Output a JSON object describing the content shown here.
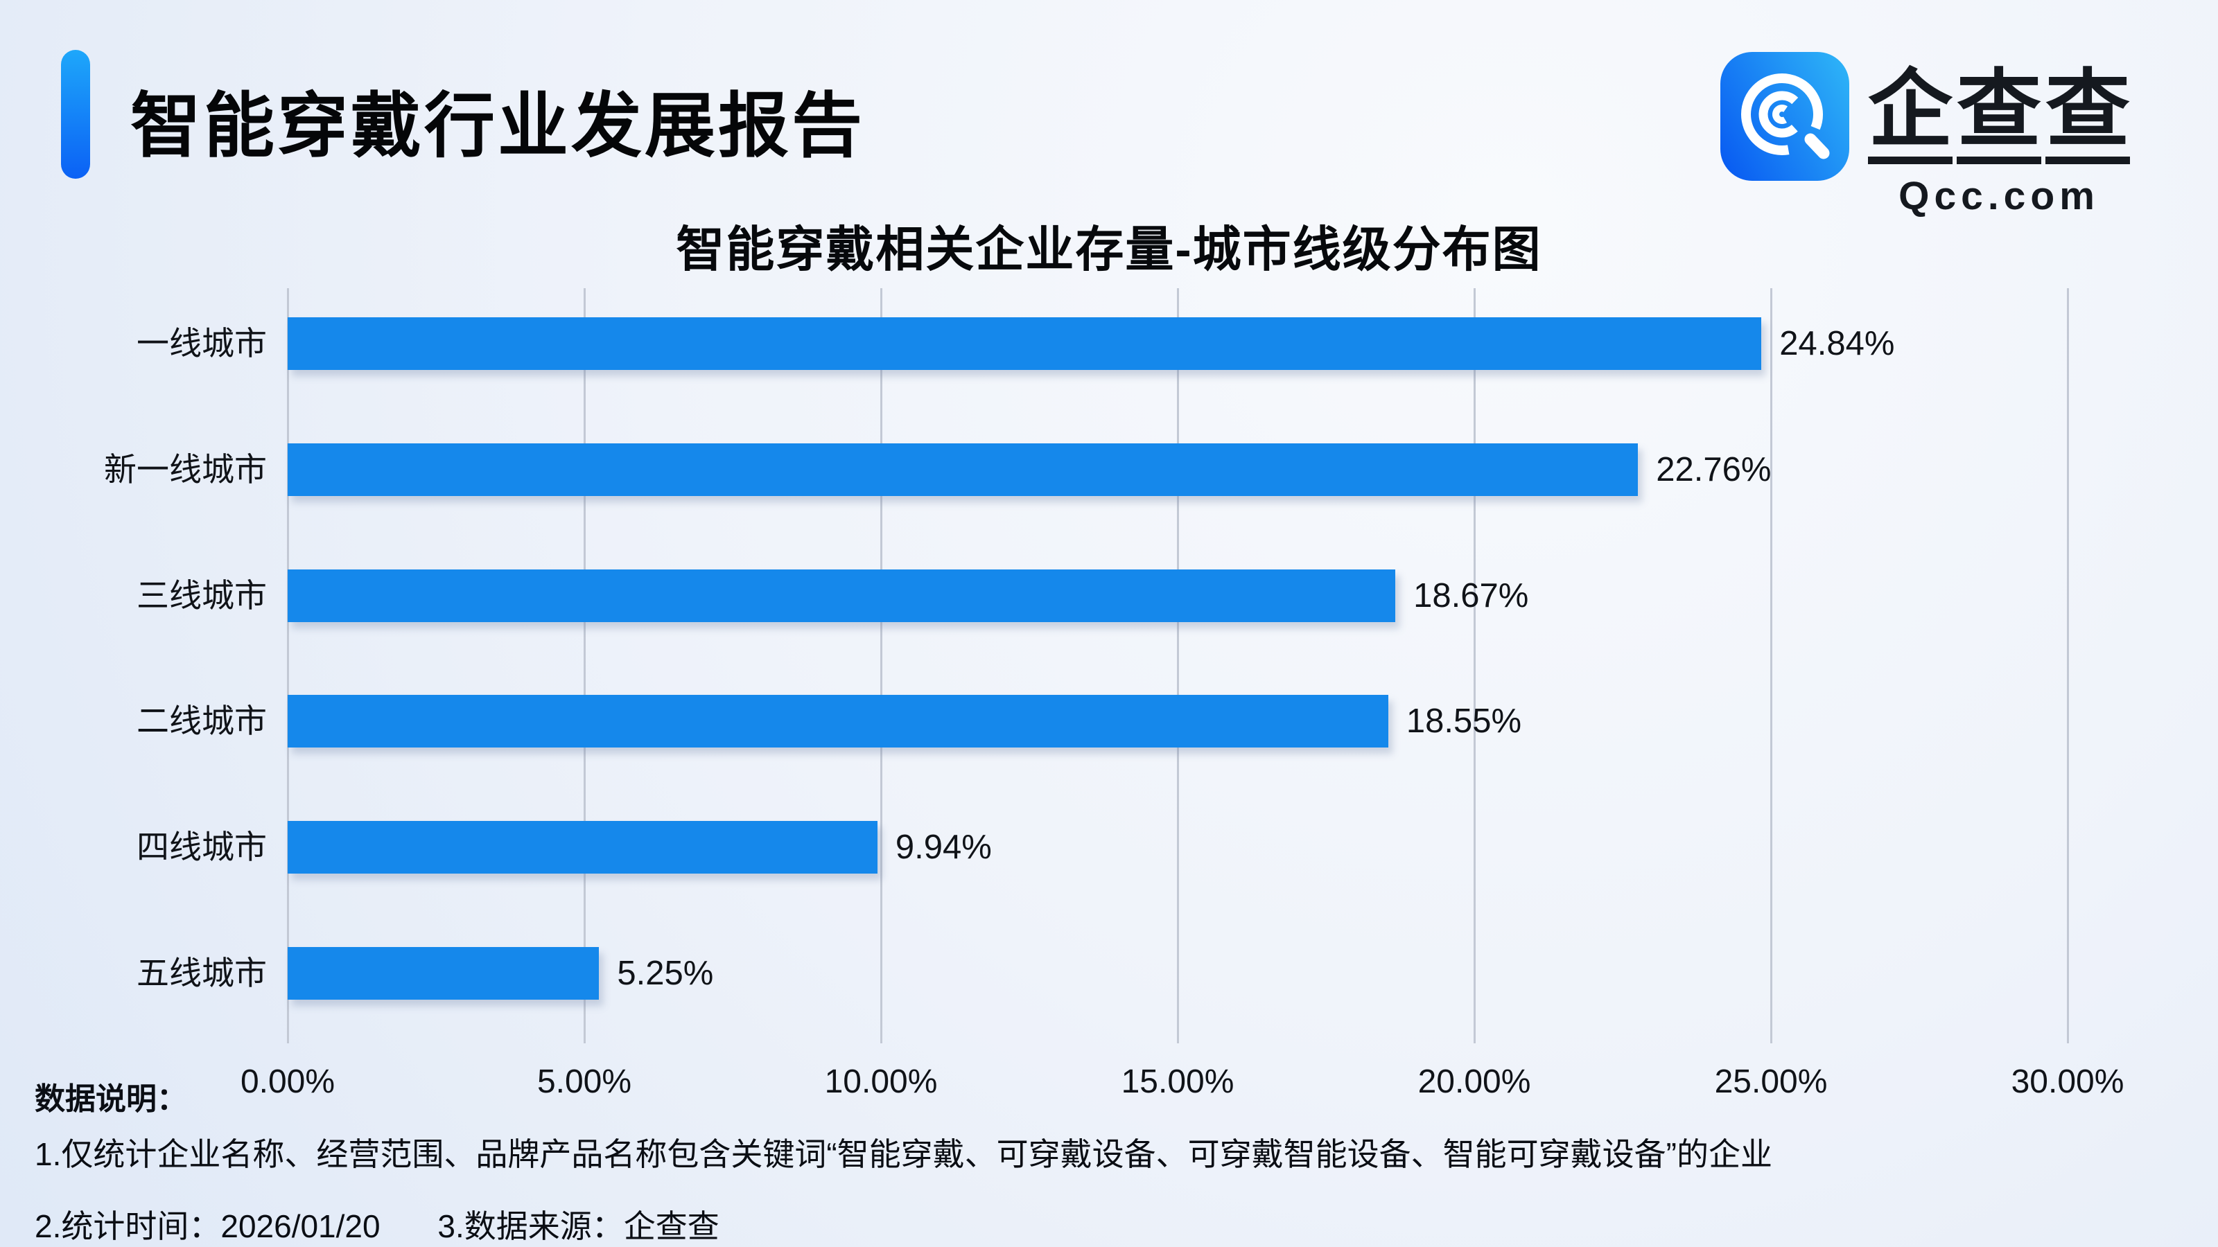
{
  "header": {
    "title": "智能穿戴行业发展报告",
    "logo": {
      "name": "企查查",
      "domain": "Qcc.com"
    }
  },
  "chart_data": {
    "type": "bar",
    "orientation": "horizontal",
    "title": "智能穿戴相关企业存量-城市线级分布图",
    "categories": [
      "一线城市",
      "新一线城市",
      "三线城市",
      "二线城市",
      "四线城市",
      "五线城市"
    ],
    "values": [
      24.84,
      22.76,
      18.67,
      18.55,
      9.94,
      5.25
    ],
    "value_labels": [
      "24.84%",
      "22.76%",
      "18.67%",
      "18.55%",
      "9.94%",
      "5.25%"
    ],
    "x_ticks": [
      "0.00%",
      "5.00%",
      "10.00%",
      "15.00%",
      "20.00%",
      "25.00%",
      "30.00%"
    ],
    "xlim": [
      0,
      30
    ],
    "xlabel": "",
    "ylabel": "",
    "grid": true,
    "legend": false,
    "bar_color": "#1588EB"
  },
  "notes": {
    "label": "数据说明：",
    "line1": "1.仅统计企业名称、经营范围、品牌产品名称包含关键词“智能穿戴、可穿戴设备、可穿戴智能设备、智能可穿戴设备”的企业",
    "line2_time": "2.统计时间：2026/01/20",
    "line2_source": "3.数据来源：企查查"
  },
  "colors": {
    "bar": "#1588EB",
    "accent_top": "#1EA7FA",
    "accent_bottom": "#0B61F5",
    "gridline": "#C3C9D5",
    "background": "#EFF3FA",
    "text": "#0B0E14"
  }
}
